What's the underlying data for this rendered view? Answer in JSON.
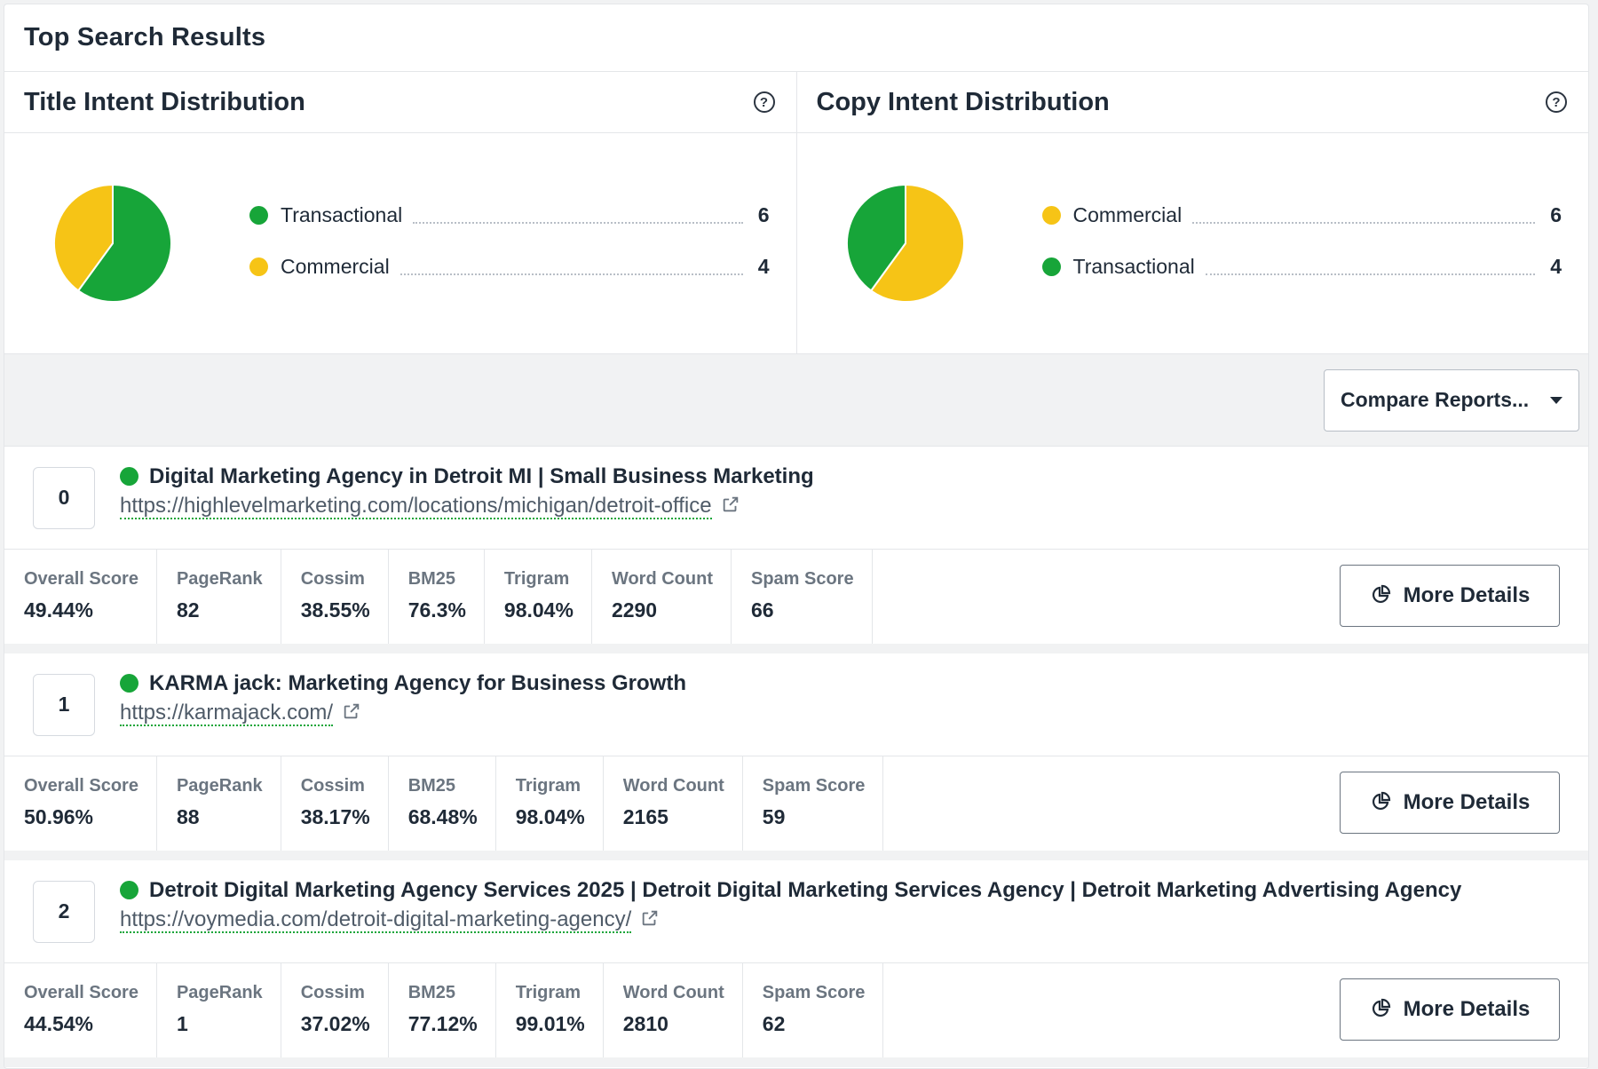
{
  "panel": {
    "title": "Top Search Results"
  },
  "title_dist": {
    "title": "Title Intent Distribution",
    "help": "?",
    "items": [
      {
        "label": "Transactional",
        "count": 6,
        "color": "#17a539"
      },
      {
        "label": "Commercial",
        "count": 4,
        "color": "#f6c416"
      }
    ]
  },
  "copy_dist": {
    "title": "Copy Intent Distribution",
    "help": "?",
    "items": [
      {
        "label": "Commercial",
        "count": 6,
        "color": "#f6c416"
      },
      {
        "label": "Transactional",
        "count": 4,
        "color": "#17a539"
      }
    ]
  },
  "toolbar": {
    "compare_label": "Compare Reports..."
  },
  "icons": {
    "external": "external-link-icon",
    "chart": "pie-chart-icon",
    "caret": "caret-down-icon"
  },
  "metric_labels": [
    "Overall Score",
    "PageRank",
    "Cossim",
    "BM25",
    "Trigram",
    "Word Count",
    "Spam Score"
  ],
  "more_details_label": "More Details",
  "results": [
    {
      "rank": "0",
      "title": "Digital Marketing Agency in Detroit MI | Small Business Marketing",
      "url": "https://highlevelmarketing.com/locations/michigan/detroit-office",
      "metrics": [
        "49.44%",
        "82",
        "38.55%",
        "76.3%",
        "98.04%",
        "2290",
        "66"
      ]
    },
    {
      "rank": "1",
      "title": "KARMA jack: Marketing Agency for Business Growth",
      "url": "https://karmajack.com/",
      "metrics": [
        "50.96%",
        "88",
        "38.17%",
        "68.48%",
        "98.04%",
        "2165",
        "59"
      ]
    },
    {
      "rank": "2",
      "title": "Detroit Digital Marketing Agency Services 2025 | Detroit Digital Marketing Services Agency | Detroit Marketing Advertising Agency",
      "url": "https://voymedia.com/detroit-digital-marketing-agency/",
      "metrics": [
        "44.54%",
        "1",
        "37.02%",
        "77.12%",
        "99.01%",
        "2810",
        "62"
      ]
    }
  ]
}
